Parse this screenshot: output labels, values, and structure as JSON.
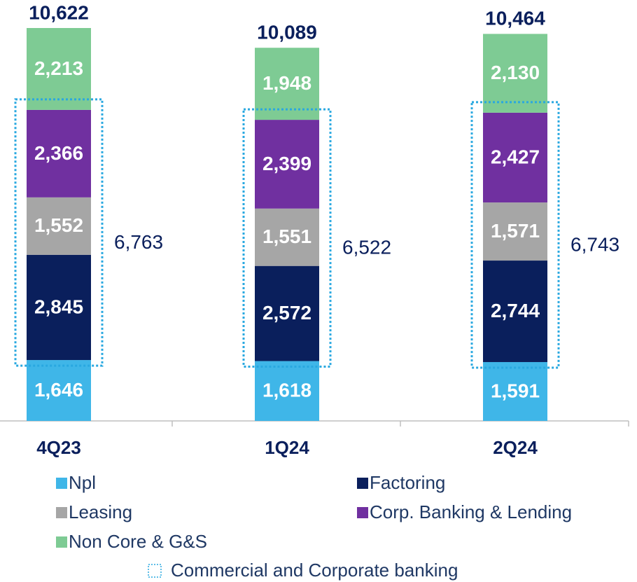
{
  "chart_data": {
    "type": "stacked_bar",
    "categories": [
      "4Q23",
      "1Q24",
      "2Q24"
    ],
    "series": [
      {
        "name": "Npl",
        "color": "#3fb6e8",
        "values": [
          1646,
          1618,
          1591
        ],
        "value_labels": [
          "1,646",
          "1,618",
          "1,591"
        ]
      },
      {
        "name": "Factoring",
        "color": "#0a1f5c",
        "values": [
          2845,
          2572,
          2744
        ],
        "value_labels": [
          "2,845",
          "2,572",
          "2,744"
        ]
      },
      {
        "name": "Leasing",
        "color": "#a6a6a6",
        "values": [
          1552,
          1551,
          1571
        ],
        "value_labels": [
          "1,552",
          "1,551",
          "1,571"
        ]
      },
      {
        "name": "Corp. Banking & Lending",
        "color": "#7030a0",
        "values": [
          2366,
          2399,
          2427
        ],
        "value_labels": [
          "2,366",
          "2,399",
          "2,427"
        ]
      },
      {
        "name": "Non Core & G&S",
        "color": "#7ecb94",
        "values": [
          2213,
          1948,
          2130
        ],
        "value_labels": [
          "2,213",
          "1,948",
          "2,130"
        ]
      }
    ],
    "totals": [
      10622,
      10089,
      10464
    ],
    "total_labels": [
      "10,622",
      "10,089",
      "10,464"
    ],
    "commercial": {
      "name": "Commercial and Corporate banking",
      "color": "#29a8e0",
      "values": [
        6763,
        6522,
        6743
      ],
      "value_labels": [
        "6,763",
        "6,522",
        "6,743"
      ]
    }
  }
}
